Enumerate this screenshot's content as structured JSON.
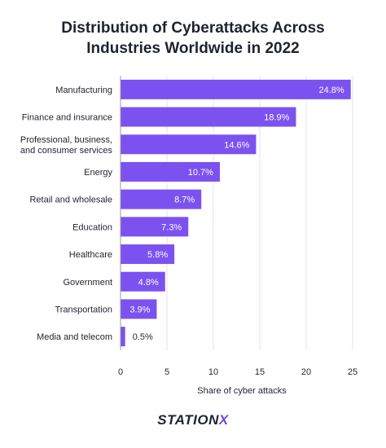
{
  "chart_data": {
    "type": "bar",
    "orientation": "horizontal",
    "title_lines": [
      "Distribution of Cyberattacks Across",
      "Industries Worldwide in 2022"
    ],
    "xlabel": "Share of cyber attacks",
    "ylabel": "",
    "xlim": [
      0,
      25
    ],
    "xticks": [
      0,
      5,
      10,
      15,
      20,
      25
    ],
    "grid": true,
    "bar_color": "#7b52f0",
    "categories": [
      [
        "Manufacturing"
      ],
      [
        "Finance and insurance"
      ],
      [
        "Professional, business,",
        "and consumer services"
      ],
      [
        "Energy"
      ],
      [
        "Retail and wholesale"
      ],
      [
        "Education"
      ],
      [
        "Healthcare"
      ],
      [
        "Government"
      ],
      [
        "Transportation"
      ],
      [
        "Media and telecom"
      ]
    ],
    "values": [
      24.8,
      18.9,
      14.6,
      10.7,
      8.7,
      7.3,
      5.8,
      4.8,
      3.9,
      0.5
    ],
    "value_labels": [
      "24.8%",
      "18.9%",
      "14.6%",
      "10.7%",
      "8.7%",
      "7.3%",
      "5.8%",
      "4.8%",
      "3.9%",
      "0.5%"
    ]
  },
  "brand": {
    "prefix": "STATION",
    "suffix": "X"
  }
}
